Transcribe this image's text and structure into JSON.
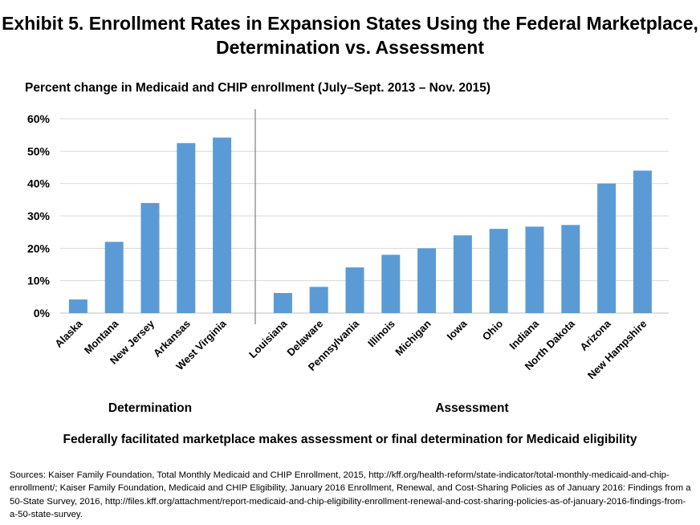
{
  "title_line1": "Exhibit 5. Enrollment Rates in Expansion States Using the Federal Marketplace,",
  "title_line2": "Determination vs. Assessment",
  "sources": "Sources: Kaiser Family Foundation, Total Monthly Medicaid and CHIP Enrollment, 2015, http://kff.org/health-reform/state-indicator/total-monthly-medicaid-and-chip-enrollment/; Kaiser Family Foundation, Medicaid and CHIP Eligibility, January 2016 Enrollment, Renewal, and Cost-Sharing Policies as of January 2016: Findings from a 50-State Survey, 2016, http://files.kff.org/attachment/report-medicaid-and-chip-eligibility-enrollment-renewal-and-cost-sharing-policies-as-of-january-2016-findings-from-a-50-state-survey.",
  "colors": {
    "bar": "#5b9bd5",
    "grid": "#d9d9d9",
    "axis": "#bfbfbf",
    "divider": "#7f7f7f"
  },
  "chart_data": {
    "type": "bar",
    "ylabel": "Percent change in Medicaid and CHIP enrollment (July–Sept. 2013 – Nov. 2015)",
    "xlabel": "Federally facilitated marketplace makes assessment or final determination for Medicaid eligibility",
    "ylim": [
      0,
      60
    ],
    "yticks": [
      0,
      10,
      20,
      30,
      40,
      50,
      60
    ],
    "ytick_labels": [
      "0%",
      "10%",
      "20%",
      "30%",
      "40%",
      "50%",
      "60%"
    ],
    "grid": true,
    "groups": [
      {
        "name": "Determination",
        "categories": [
          "Alaska",
          "Montana",
          "New Jersey",
          "Arkansas",
          "West Virginia"
        ],
        "values": [
          4.2,
          22,
          34,
          52.5,
          54.2
        ]
      },
      {
        "name": "Assessment",
        "categories": [
          "Louisiana",
          "Delaware",
          "Pennsylvania",
          "Illinois",
          "Michigan",
          "Iowa",
          "Ohio",
          "Indiana",
          "North Dakota",
          "Arizona",
          "New Hampshire"
        ],
        "values": [
          6.2,
          8.1,
          14.1,
          18,
          20,
          24,
          26,
          26.7,
          27.2,
          40,
          44
        ]
      }
    ]
  }
}
